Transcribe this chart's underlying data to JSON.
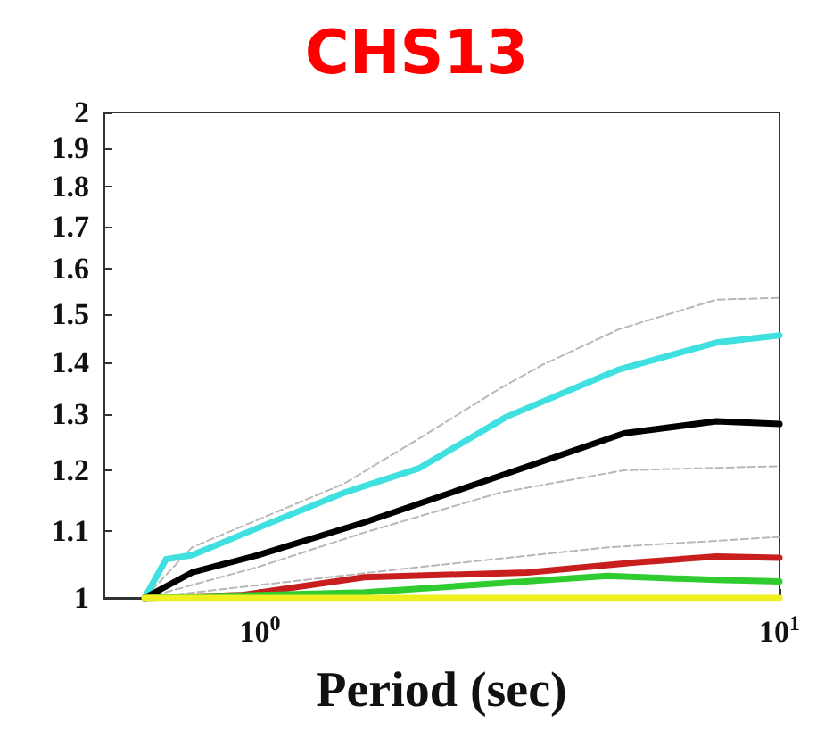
{
  "chart_data": {
    "type": "line",
    "title": "CHS13",
    "xlabel": "Period (sec)",
    "log": "xy",
    "xlim": [
      0.5,
      10
    ],
    "xticks": [
      {
        "value": 1,
        "label": "10$^{0}$"
      },
      {
        "value": 10,
        "label": "10$^{1}$"
      }
    ],
    "ylim": [
      1,
      2
    ],
    "yticks": [
      1,
      1.1,
      1.2,
      1.3,
      1.4,
      1.5,
      1.6,
      1.7,
      1.8,
      1.9,
      2
    ],
    "grid": false,
    "marker": "none",
    "series": [
      {
        "color": "#b8b8b8",
        "line_style": "dashed",
        "x": [
          0.6,
          0.74,
          1.45,
          2.02,
          2.89,
          3.5,
          4.92,
          7.56,
          10
        ],
        "values": [
          1.0,
          1.075,
          1.177,
          1.255,
          1.348,
          1.395,
          1.468,
          1.531,
          1.535
        ]
      },
      {
        "color": "#b8b8b8",
        "line_style": "dashed",
        "x": [
          0.6,
          0.99,
          1.59,
          2.89,
          5.02,
          10
        ],
        "values": [
          1.0,
          1.045,
          1.098,
          1.162,
          1.2,
          1.207
        ]
      },
      {
        "color": "#b8b8b8",
        "line_style": "dashed",
        "x": [
          0.6,
          2.02,
          4.67,
          10
        ],
        "values": [
          1.0,
          1.045,
          1.075,
          1.091
        ]
      },
      {
        "color": "#40e0e0",
        "line_style": "solid",
        "x": [
          0.6,
          0.66,
          0.74,
          0.99,
          1.45,
          2.02,
          2.98,
          4.92,
          7.56,
          10
        ],
        "values": [
          1.0,
          1.057,
          1.063,
          1.105,
          1.162,
          1.203,
          1.295,
          1.386,
          1.44,
          1.455
        ]
      },
      {
        "color": "#000000",
        "line_style": "solid",
        "x": [
          0.6,
          0.74,
          0.99,
          1.59,
          2.89,
          5.02,
          7.56,
          10
        ],
        "values": [
          1.0,
          1.037,
          1.063,
          1.114,
          1.19,
          1.265,
          1.287,
          1.282
        ]
      },
      {
        "color": "#c81e1e",
        "line_style": "solid",
        "x": [
          0.6,
          0.92,
          1.59,
          3.27,
          5.28,
          7.56,
          10
        ],
        "values": [
          1.0,
          1.004,
          1.03,
          1.037,
          1.052,
          1.061,
          1.059
        ]
      },
      {
        "color": "#2ecc2e",
        "line_style": "solid",
        "x": [
          0.6,
          1.59,
          4.67,
          7.56,
          10
        ],
        "values": [
          1.0,
          1.008,
          1.032,
          1.026,
          1.024
        ]
      },
      {
        "color": "#f0f020",
        "line_style": "solid",
        "x": [
          0.6,
          10
        ],
        "values": [
          1.0,
          1.0
        ]
      }
    ]
  }
}
